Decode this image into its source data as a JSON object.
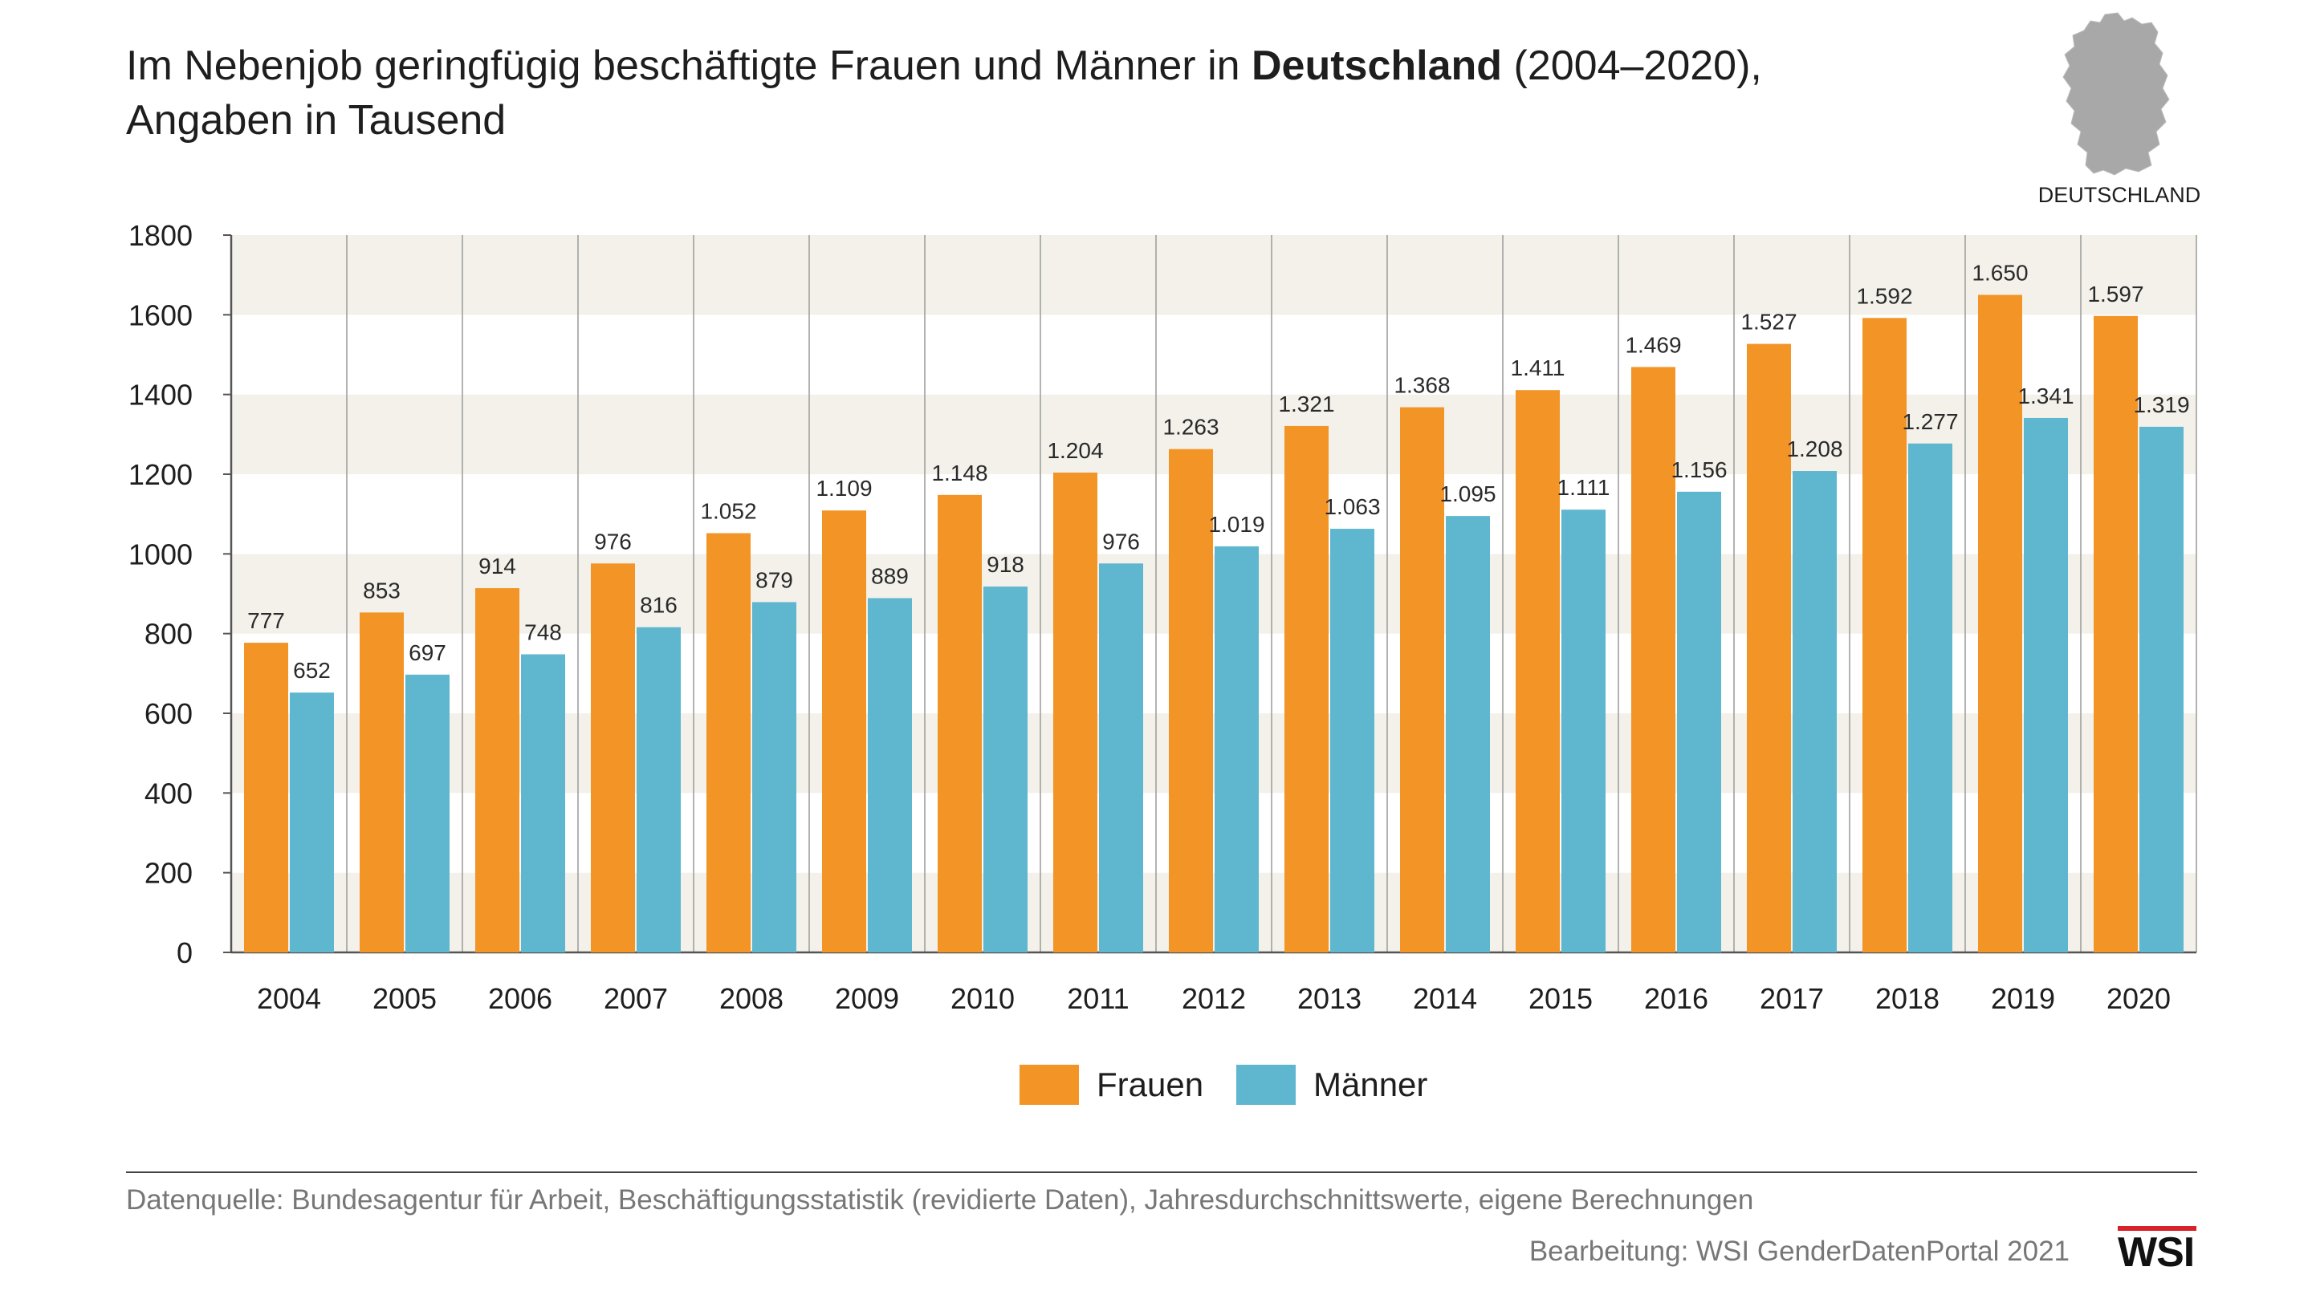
{
  "title": {
    "part1": "Im Nebenjob geringfügig beschäftigte Frauen und Männer in ",
    "bold": "Deutschland",
    "part2": " (2004–2020),",
    "line2": "Angaben in Tausend"
  },
  "map_label": "DEUTSCHLAND",
  "map_icon": "germany-map-icon",
  "chart_data": {
    "type": "bar",
    "categories": [
      "2004",
      "2005",
      "2006",
      "2007",
      "2008",
      "2009",
      "2010",
      "2011",
      "2012",
      "2013",
      "2014",
      "2015",
      "2016",
      "2017",
      "2018",
      "2019",
      "2020"
    ],
    "series": [
      {
        "name": "Frauen",
        "color": "#f39427",
        "values": [
          777,
          853,
          914,
          976,
          1052,
          1109,
          1148,
          1204,
          1263,
          1321,
          1368,
          1411,
          1469,
          1527,
          1592,
          1650,
          1597
        ],
        "labels": [
          "777",
          "853",
          "914",
          "976",
          "1.052",
          "1.109",
          "1.148",
          "1.204",
          "1.263",
          "1.321",
          "1.368",
          "1.411",
          "1.469",
          "1.527",
          "1.592",
          "1.650",
          "1.597"
        ]
      },
      {
        "name": "Männer",
        "color": "#5eb6cf",
        "values": [
          652,
          697,
          748,
          816,
          879,
          889,
          918,
          976,
          1019,
          1063,
          1095,
          1111,
          1156,
          1208,
          1277,
          1341,
          1319
        ],
        "labels": [
          "652",
          "697",
          "748",
          "816",
          "879",
          "889",
          "918",
          "976",
          "1.019",
          "1.063",
          "1.095",
          "1.111",
          "1.156",
          "1.208",
          "1.277",
          "1.341",
          "1.319"
        ]
      }
    ],
    "ylim": [
      0,
      1800
    ],
    "yticks": [
      0,
      200,
      400,
      600,
      800,
      1000,
      1200,
      1400,
      1600,
      1800
    ],
    "ytick_labels": [
      "0",
      "200",
      "400",
      "600",
      "800",
      "1000",
      "1200",
      "1400",
      "1600",
      "1800"
    ],
    "grid": "alternating horizontal bands, vertical category separators",
    "legend_position": "bottom-center"
  },
  "legend": [
    {
      "label": "Frauen",
      "color": "#f39427"
    },
    {
      "label": "Männer",
      "color": "#5eb6cf"
    }
  ],
  "source": "Datenquelle: Bundesagentur für Arbeit, Beschäftigungsstatistik (revidierte Daten), Jahresdurchschnittswerte, eigene Berechnungen",
  "credit": "Bearbeitung: WSI GenderDatenPortal 2021",
  "logo_text": "WSI"
}
